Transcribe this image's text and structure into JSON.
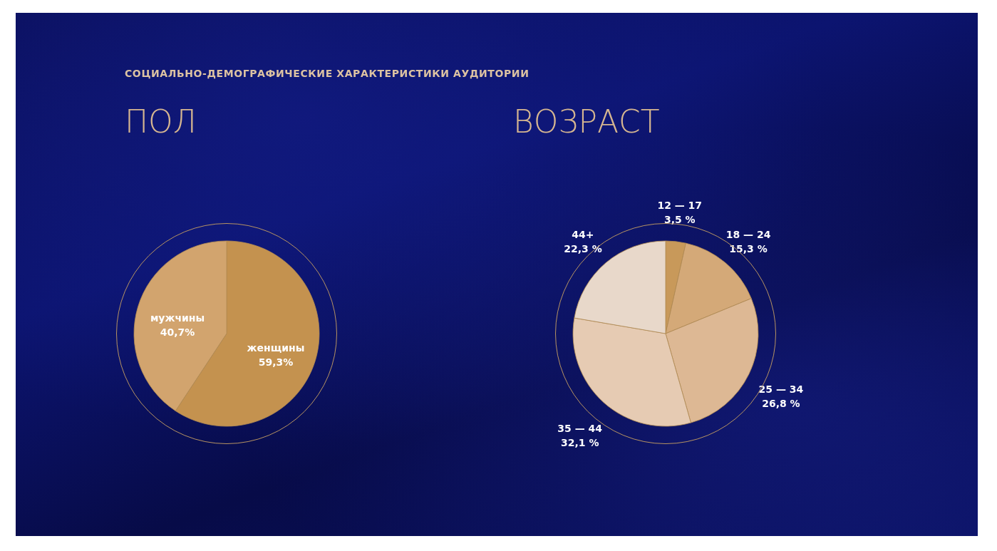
{
  "chart_data": [
    {
      "type": "pie",
      "title": "ПОЛ",
      "annotations": [
        "СОЦИАЛЬНО-ДЕМОГРАФИЧЕСКИЕ ХАРАКТЕРИСТИКИ АУДИТОРИИ"
      ],
      "categories": [
        "женщины",
        "мужчины"
      ],
      "values": [
        59.3,
        40.7
      ],
      "colors": [
        "#c4924f",
        "#d2a46e"
      ],
      "value_labels": [
        "59,3%",
        "40,7%"
      ]
    },
    {
      "type": "pie",
      "title": "ВОЗРАСТ",
      "categories": [
        "12 — 17",
        "18 — 24",
        "25 — 34",
        "35 — 44",
        "44+"
      ],
      "values": [
        3.5,
        15.3,
        26.8,
        32.1,
        22.3
      ],
      "colors": [
        "#c8995a",
        "#d4a978",
        "#ddb894",
        "#e6cbb3",
        "#e8d8ca"
      ],
      "value_labels": [
        "3,5 %",
        "15,3 %",
        "26,8 %",
        "32,1 %",
        "22,3 %"
      ]
    }
  ]
}
